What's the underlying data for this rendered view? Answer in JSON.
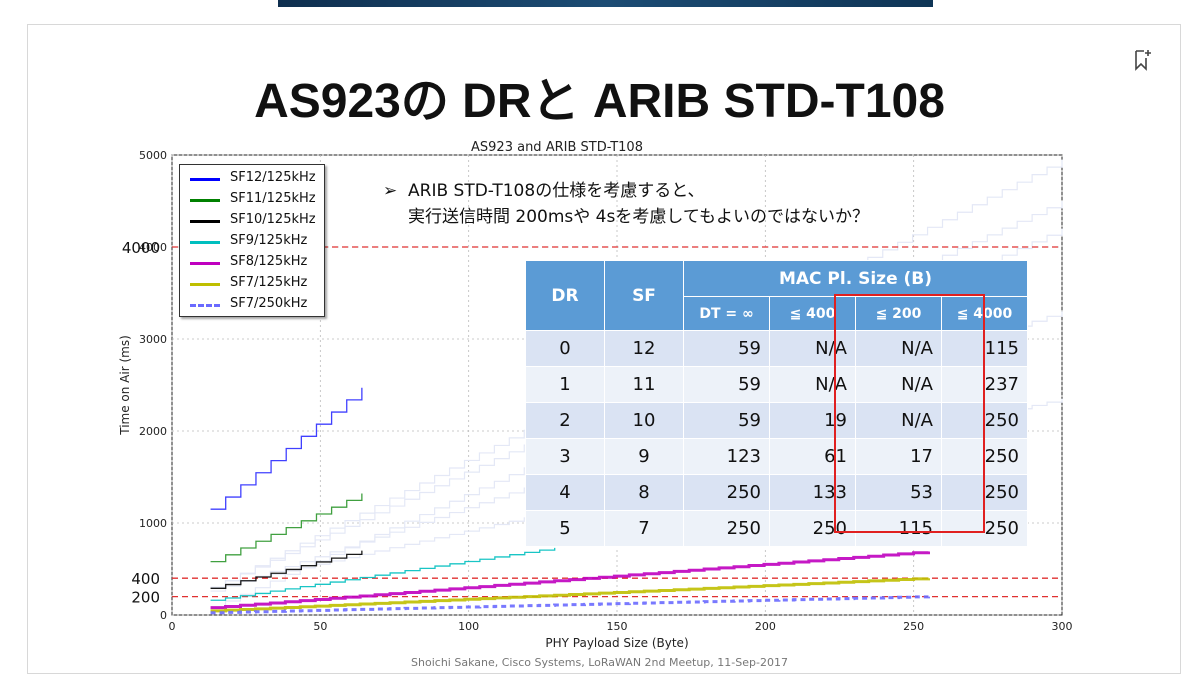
{
  "slide": {
    "title": "AS923の DRと ARIB STD-T108",
    "footer": "Shoichi Sakane, Cisco Systems, LoRaWAN 2nd Meetup, 11-Sep-2017"
  },
  "note": {
    "bullet": "➢",
    "line1": "ARIB STD-T108の仕様を考慮すると、",
    "line2": "実行送信時間 200msや 4sを考慮してもよいのではないか？"
  },
  "table": {
    "headers": {
      "dr": "DR",
      "sf": "SF",
      "group": "MAC Pl. Size (B)",
      "sub": [
        "DT = ∞",
        "≦ 400",
        "≦ 200",
        "≦ 4000"
      ]
    },
    "rows": [
      [
        "0",
        "12",
        "59",
        "N/A",
        "N/A",
        "115"
      ],
      [
        "1",
        "11",
        "59",
        "N/A",
        "N/A",
        "237"
      ],
      [
        "2",
        "10",
        "59",
        "19",
        "N/A",
        "250"
      ],
      [
        "3",
        "9",
        "123",
        "61",
        "17",
        "250"
      ],
      [
        "4",
        "8",
        "250",
        "133",
        "53",
        "250"
      ],
      [
        "5",
        "7",
        "250",
        "250",
        "115",
        "250"
      ]
    ]
  },
  "chart_data": {
    "type": "line",
    "title": "AS923 and ARIB STD-T108",
    "xlabel": "PHY Payload Size (Byte)",
    "ylabel": "Time on Air (ms)",
    "xlim": [
      0,
      300
    ],
    "ylim": [
      0,
      5000
    ],
    "xticks": [
      "0",
      "50",
      "100",
      "150",
      "200",
      "250",
      "300"
    ],
    "yticks": [
      "0",
      "1000",
      "2000",
      "3000",
      "4000",
      "5000"
    ],
    "grid": true,
    "legend_position": "top-left",
    "reference_lines": [
      {
        "y": 4000,
        "label": "4000"
      },
      {
        "y": 400,
        "label": "400"
      },
      {
        "y": 200,
        "label": "200"
      }
    ],
    "series": [
      {
        "name": "SF12/125kHz",
        "color": "#0000ff",
        "x": [
          13,
          64
        ],
        "y": [
          1150,
          2470
        ]
      },
      {
        "name": "SF11/125kHz",
        "color": "#008000",
        "x": [
          13,
          64
        ],
        "y": [
          580,
          1320
        ]
      },
      {
        "name": "SF10/125kHz",
        "color": "#000000",
        "x": [
          13,
          64
        ],
        "y": [
          290,
          700
        ]
      },
      {
        "name": "SF9/125kHz",
        "color": "#00bfbf",
        "x": [
          13,
          129
        ],
        "y": [
          160,
          730
        ]
      },
      {
        "name": "SF8/125kHz",
        "color": "#bf00bf",
        "x": [
          13,
          255
        ],
        "y": [
          80,
          690
        ]
      },
      {
        "name": "SF7/125kHz",
        "color": "#bfbf00",
        "x": [
          13,
          255
        ],
        "y": [
          45,
          400
        ]
      },
      {
        "name": "SF7/250kHz",
        "color": "#6a6aff",
        "x": [
          13,
          255
        ],
        "y": [
          25,
          200
        ]
      }
    ]
  },
  "colors": {
    "table_header": "#5b9bd5",
    "highlight": "#e02020",
    "reference_line": "#e03030"
  }
}
